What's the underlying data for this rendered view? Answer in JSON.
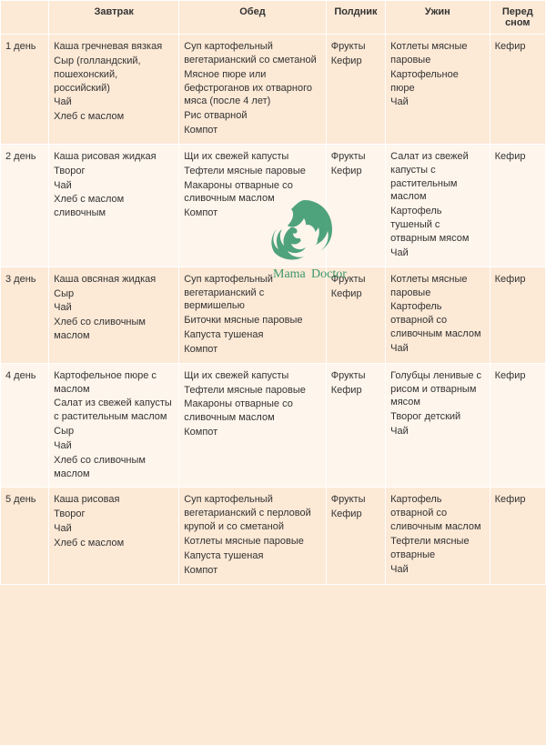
{
  "columns": [
    "",
    "Завтрак",
    "Обед",
    "Полдник",
    "Ужин",
    "Перед сном"
  ],
  "rows": [
    {
      "day": "1 день",
      "breakfast": [
        "Каша гречневая вязкая",
        "Сыр (голландский, пошехонский, российский)",
        "Чай",
        "Хлеб с маслом"
      ],
      "lunch": [
        "Суп картофельный вегетарианский со сметаной",
        "Мясное пюре или бефстроганов их отварного мяса (после 4 лет)",
        "Рис отварной",
        "Компот"
      ],
      "snack": [
        "Фрукты",
        "Кефир"
      ],
      "dinner": [
        "Котлеты мясные паровые",
        "Картофельное пюре",
        "Чай"
      ],
      "bed": [
        "Кефир"
      ]
    },
    {
      "day": "2 день",
      "breakfast": [
        "Каша рисовая жидкая",
        "Творог",
        "Чай",
        "Хлеб с маслом сливочным"
      ],
      "lunch": [
        "Щи их свежей капусты",
        "Тефтели мясные паровые",
        "Макароны отварные со сливочным маслом",
        "Компот"
      ],
      "snack": [
        "Фрукты",
        "Кефир"
      ],
      "dinner": [
        "Салат из свежей капусты с растительным маслом",
        "Картофель тушеный с отварным мясом",
        "Чай"
      ],
      "bed": [
        "Кефир"
      ]
    },
    {
      "day": "3 день",
      "breakfast": [
        "Каша овсяная жидкая",
        "Сыр",
        "Чай",
        "Хлеб со сливочным маслом"
      ],
      "lunch": [
        "Суп картофельный вегетарианский с вермишелью",
        "Биточки мясные паровые",
        "Капуста тушеная",
        "Компот"
      ],
      "snack": [
        "Фрукты",
        "Кефир"
      ],
      "dinner": [
        "Котлеты мясные паровые",
        "Картофель отварной со сливочным маслом",
        "Чай"
      ],
      "bed": [
        "Кефир"
      ]
    },
    {
      "day": "4 день",
      "breakfast": [
        "Картофельное пюре с маслом",
        "Салат из свежей капусты с растительным маслом",
        "Сыр",
        "Чай",
        "Хлеб со сливочным маслом"
      ],
      "lunch": [
        "Щи их свежей капусты",
        "Тефтели мясные паровые",
        "Макароны отварные со сливочным маслом",
        "Компот"
      ],
      "snack": [
        "Фрукты",
        "Кефир"
      ],
      "dinner": [
        "Голубцы ленивые с рисом и отварным мясом",
        "Творог детский",
        "Чай"
      ],
      "bed": [
        "Кефир"
      ]
    },
    {
      "day": "5 день",
      "breakfast": [
        "Каша рисовая",
        "Творог",
        "Чай",
        "Хлеб с маслом"
      ],
      "lunch": [
        "Суп картофельный вегетарианский с перловой крупой и со сметаной",
        "Котлеты мясные паровые",
        "Капуста тушеная",
        "Компот"
      ],
      "snack": [
        "Фрукты",
        "Кефир"
      ],
      "dinner": [
        "Картофель отварной со сливочным маслом",
        "Тефтели мясные отварные",
        "Чай"
      ],
      "bed": [
        "Кефир"
      ]
    }
  ],
  "watermark": {
    "text1": "Mama",
    "text2": "Doctor",
    "color": "#1a8a5a"
  }
}
